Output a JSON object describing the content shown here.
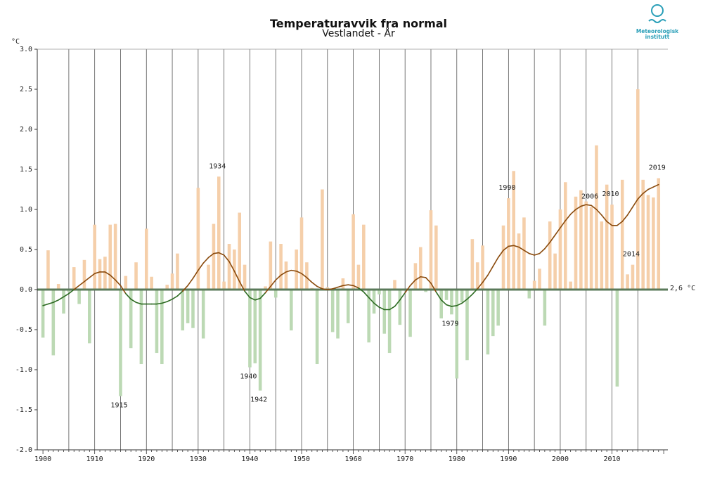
{
  "chart_data": {
    "type": "bar",
    "title": "Temperaturavvik fra normal",
    "subtitle": "Vestlandet - År",
    "ylabel": "°C",
    "normal_label": "2,6 °C",
    "ylim": [
      -2.0,
      3.0
    ],
    "yticks": [
      "-2.0",
      "-1.5",
      "-1.0",
      "-0.5",
      "0.0",
      "0.5",
      "1.0",
      "1.5",
      "2.0",
      "2.5",
      "3.0"
    ],
    "xticks": [
      "1900",
      "1910",
      "1920",
      "1930",
      "1940",
      "1950",
      "1960",
      "1970",
      "1980",
      "1990",
      "2000",
      "2010"
    ],
    "positive_color": "#f5cfaa",
    "negative_color": "#bcd9b4",
    "smooth_color": "#8a4a0c",
    "smooth_neg_color": "#2d6b22",
    "zero_line_color": "#5a7a5a",
    "years": [
      1900,
      1901,
      1902,
      1903,
      1904,
      1905,
      1906,
      1907,
      1908,
      1909,
      1910,
      1911,
      1912,
      1913,
      1914,
      1915,
      1916,
      1917,
      1918,
      1919,
      1920,
      1921,
      1922,
      1923,
      1924,
      1925,
      1926,
      1927,
      1928,
      1929,
      1930,
      1931,
      1932,
      1933,
      1934,
      1935,
      1936,
      1937,
      1938,
      1939,
      1940,
      1941,
      1942,
      1943,
      1944,
      1945,
      1946,
      1947,
      1948,
      1949,
      1950,
      1951,
      1952,
      1953,
      1954,
      1955,
      1956,
      1957,
      1958,
      1959,
      1960,
      1961,
      1962,
      1963,
      1964,
      1965,
      1966,
      1967,
      1968,
      1969,
      1970,
      1971,
      1972,
      1973,
      1974,
      1975,
      1976,
      1977,
      1978,
      1979,
      1980,
      1981,
      1982,
      1983,
      1984,
      1985,
      1986,
      1987,
      1988,
      1989,
      1990,
      1991,
      1992,
      1993,
      1994,
      1995,
      1996,
      1997,
      1998,
      1999,
      2000,
      2001,
      2002,
      2003,
      2004,
      2005,
      2006,
      2007,
      2008,
      2009,
      2010,
      2011,
      2012,
      2013,
      2014,
      2015,
      2016,
      2017,
      2018,
      2019
    ],
    "values": [
      -0.6,
      0.49,
      -0.82,
      0.07,
      -0.3,
      -0.03,
      0.28,
      -0.18,
      0.37,
      -0.67,
      0.81,
      0.38,
      0.41,
      0.81,
      0.82,
      -1.33,
      0.17,
      -0.73,
      0.34,
      -0.93,
      0.76,
      0.16,
      -0.79,
      -0.93,
      0.06,
      0.2,
      0.45,
      -0.51,
      -0.42,
      -0.48,
      1.27,
      -0.61,
      0.31,
      0.82,
      1.41,
      0.1,
      0.57,
      0.5,
      0.96,
      0.31,
      -0.97,
      -0.92,
      -1.26,
      0.04,
      0.6,
      -0.1,
      0.57,
      0.35,
      -0.51,
      0.5,
      0.9,
      0.34,
      0.02,
      -0.93,
      1.25,
      0.03,
      -0.53,
      -0.61,
      0.14,
      -0.42,
      0.94,
      0.31,
      0.81,
      -0.66,
      -0.3,
      -0.06,
      -0.55,
      -0.79,
      0.12,
      -0.44,
      0.0,
      -0.59,
      0.33,
      0.53,
      -0.03,
      0.99,
      0.8,
      -0.36,
      -0.13,
      -0.31,
      -1.11,
      -0.16,
      -0.88,
      0.63,
      0.34,
      0.55,
      -0.81,
      -0.58,
      -0.45,
      0.8,
      1.14,
      1.48,
      0.7,
      0.9,
      -0.11,
      0.11,
      0.26,
      -0.45,
      0.85,
      0.45,
      1.0,
      1.34,
      0.1,
      1.16,
      1.24,
      1.1,
      1.03,
      1.8,
      0.85,
      1.31,
      1.06,
      -1.21,
      1.37,
      0.19,
      0.31,
      2.5,
      1.37,
      1.18,
      1.15,
      1.39
    ],
    "smooth": [
      -0.2,
      -0.18,
      -0.16,
      -0.13,
      -0.09,
      -0.05,
      0.0,
      0.05,
      0.1,
      0.15,
      0.2,
      0.22,
      0.22,
      0.18,
      0.12,
      0.05,
      -0.05,
      -0.12,
      -0.16,
      -0.18,
      -0.18,
      -0.18,
      -0.18,
      -0.17,
      -0.15,
      -0.12,
      -0.08,
      -0.02,
      0.05,
      0.14,
      0.24,
      0.33,
      0.4,
      0.45,
      0.46,
      0.43,
      0.35,
      0.23,
      0.1,
      -0.02,
      -0.1,
      -0.13,
      -0.11,
      -0.04,
      0.04,
      0.12,
      0.18,
      0.22,
      0.24,
      0.23,
      0.2,
      0.15,
      0.09,
      0.04,
      0.01,
      0.0,
      0.01,
      0.03,
      0.05,
      0.06,
      0.05,
      0.02,
      -0.03,
      -0.1,
      -0.17,
      -0.22,
      -0.25,
      -0.25,
      -0.21,
      -0.13,
      -0.04,
      0.05,
      0.12,
      0.16,
      0.15,
      0.08,
      -0.03,
      -0.13,
      -0.19,
      -0.21,
      -0.2,
      -0.17,
      -0.12,
      -0.06,
      0.01,
      0.09,
      0.18,
      0.29,
      0.4,
      0.49,
      0.54,
      0.55,
      0.53,
      0.49,
      0.45,
      0.43,
      0.45,
      0.51,
      0.59,
      0.68,
      0.77,
      0.86,
      0.94,
      1.0,
      1.04,
      1.06,
      1.05,
      1.0,
      0.93,
      0.85,
      0.8,
      0.8,
      0.85,
      0.93,
      1.03,
      1.13,
      1.2,
      1.25,
      1.28,
      1.31
    ],
    "annotations": [
      {
        "year": 1915,
        "label": "1915"
      },
      {
        "year": 1934,
        "label": "1934"
      },
      {
        "year": 1940,
        "label": "1940"
      },
      {
        "year": 1942,
        "label": "1942"
      },
      {
        "year": 1979,
        "label": "1979"
      },
      {
        "year": 1990,
        "label": "1990"
      },
      {
        "year": 2006,
        "label": "2006"
      },
      {
        "year": 2010,
        "label": "2010"
      },
      {
        "year": 2014,
        "label": "2014"
      },
      {
        "year": 2019,
        "label": "2019"
      }
    ]
  },
  "logo": {
    "text": "Meteorologisk institutt",
    "color": "#2a9fb8"
  }
}
